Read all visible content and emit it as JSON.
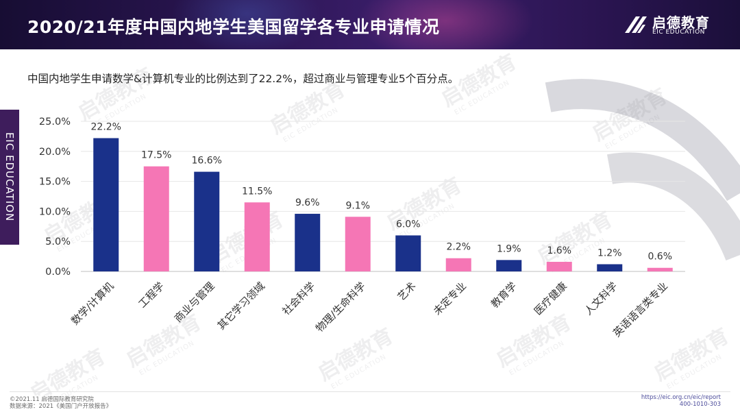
{
  "header": {
    "title": "2020/21年度中国内地学生美国留学各专业申请情况",
    "logo_cn": "启德教育",
    "logo_en": "EIC EDUCATION"
  },
  "subtitle": "中国内地学生申请数学&计算机专业的比例达到了22.2%，超过商业与管理专业5个百分点。",
  "side_tab": "EIC EDUCATION",
  "watermark": {
    "cn": "启德教育",
    "en": "EIC EDUCATION",
    "mark": "iU"
  },
  "colors": {
    "navy": "#1a318a",
    "pink": "#f576b5",
    "header": "#2a1551",
    "side_tab": "#3e1d5c"
  },
  "chart_data": {
    "type": "bar",
    "title": "",
    "xlabel": "",
    "ylabel": "",
    "ylim": [
      0,
      25
    ],
    "yticks": [
      "0.0%",
      "5.0%",
      "10.0%",
      "15.0%",
      "20.0%",
      "25.0%"
    ],
    "grid": true,
    "categories": [
      "数学/计算机",
      "工程学",
      "商业与管理",
      "其它学习领域",
      "社会科学",
      "物理/生命科学",
      "艺术",
      "未定专业",
      "教育学",
      "医疗健康",
      "人文科学",
      "英语语言类专业"
    ],
    "values": [
      22.2,
      17.5,
      16.6,
      11.5,
      9.6,
      9.1,
      6.0,
      2.2,
      1.9,
      1.6,
      1.2,
      0.6
    ],
    "value_labels": [
      "22.2%",
      "17.5%",
      "16.6%",
      "11.5%",
      "9.6%",
      "9.1%",
      "6.0%",
      "2.2%",
      "1.9%",
      "1.6%",
      "1.2%",
      "0.6%"
    ],
    "bar_colors": [
      "#1a318a",
      "#f576b5",
      "#1a318a",
      "#f576b5",
      "#1a318a",
      "#f576b5",
      "#1a318a",
      "#f576b5",
      "#1a318a",
      "#f576b5",
      "#1a318a",
      "#f576b5"
    ]
  },
  "footer": {
    "copyright": "©2021.11 启德国际教育研究院",
    "source": "数据来源：2021《美国门户开放报告》",
    "url": "https://eic.org.cn/eic/report",
    "phone": "400-1010-303"
  }
}
